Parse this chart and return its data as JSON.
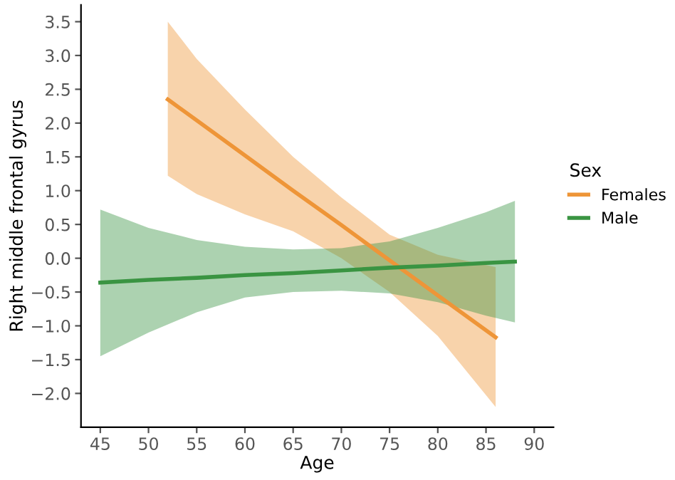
{
  "chart_data": {
    "type": "line",
    "xlabel": "Age",
    "ylabel": "Right middle frontal gyrus",
    "legend_title": "Sex",
    "legend": "right",
    "grid": false,
    "line_style": "solid",
    "marker": "none",
    "xlim": [
      43,
      92
    ],
    "ylim": [
      -2.5,
      3.75
    ],
    "xticks": [
      45,
      50,
      55,
      60,
      65,
      70,
      75,
      80,
      85,
      90
    ],
    "yticks": [
      {
        "value": -2,
        "label": "−2.0"
      },
      {
        "value": -1.5,
        "label": "−1.5"
      },
      {
        "value": -1,
        "label": "−1.0"
      },
      {
        "value": -0.5,
        "label": "−0.5"
      },
      {
        "value": 0,
        "label": "0.0"
      },
      {
        "value": 0.5,
        "label": "0.5"
      },
      {
        "value": 1,
        "label": "1.0"
      },
      {
        "value": 1.5,
        "label": "1.5"
      },
      {
        "value": 2,
        "label": "2.0"
      },
      {
        "value": 2.5,
        "label": "2.5"
      },
      {
        "value": 3,
        "label": "3.0"
      },
      {
        "value": 3.5,
        "label": "3.5"
      }
    ],
    "series": [
      {
        "name": "Females",
        "color": "#ee9538",
        "x": [
          52,
          55,
          60,
          65,
          70,
          75,
          80,
          86
        ],
        "values": [
          2.35,
          2.04,
          1.52,
          1.0,
          0.49,
          -0.03,
          -0.55,
          -1.17
        ],
        "lower": [
          1.22,
          0.95,
          0.65,
          0.4,
          0.0,
          -0.5,
          -1.15,
          -2.2
        ],
        "upper": [
          3.5,
          2.95,
          2.2,
          1.5,
          0.9,
          0.35,
          0.05,
          -0.13
        ]
      },
      {
        "name": "Male",
        "color": "#3a9442",
        "x": [
          45,
          50,
          55,
          60,
          65,
          70,
          75,
          80,
          85,
          88
        ],
        "values": [
          -0.36,
          -0.32,
          -0.29,
          -0.25,
          -0.22,
          -0.18,
          -0.14,
          -0.11,
          -0.07,
          -0.05
        ],
        "lower": [
          -1.45,
          -1.1,
          -0.8,
          -0.58,
          -0.5,
          -0.48,
          -0.52,
          -0.65,
          -0.85,
          -0.95
        ],
        "upper": [
          0.72,
          0.45,
          0.27,
          0.17,
          0.13,
          0.15,
          0.25,
          0.45,
          0.68,
          0.85
        ]
      }
    ]
  }
}
